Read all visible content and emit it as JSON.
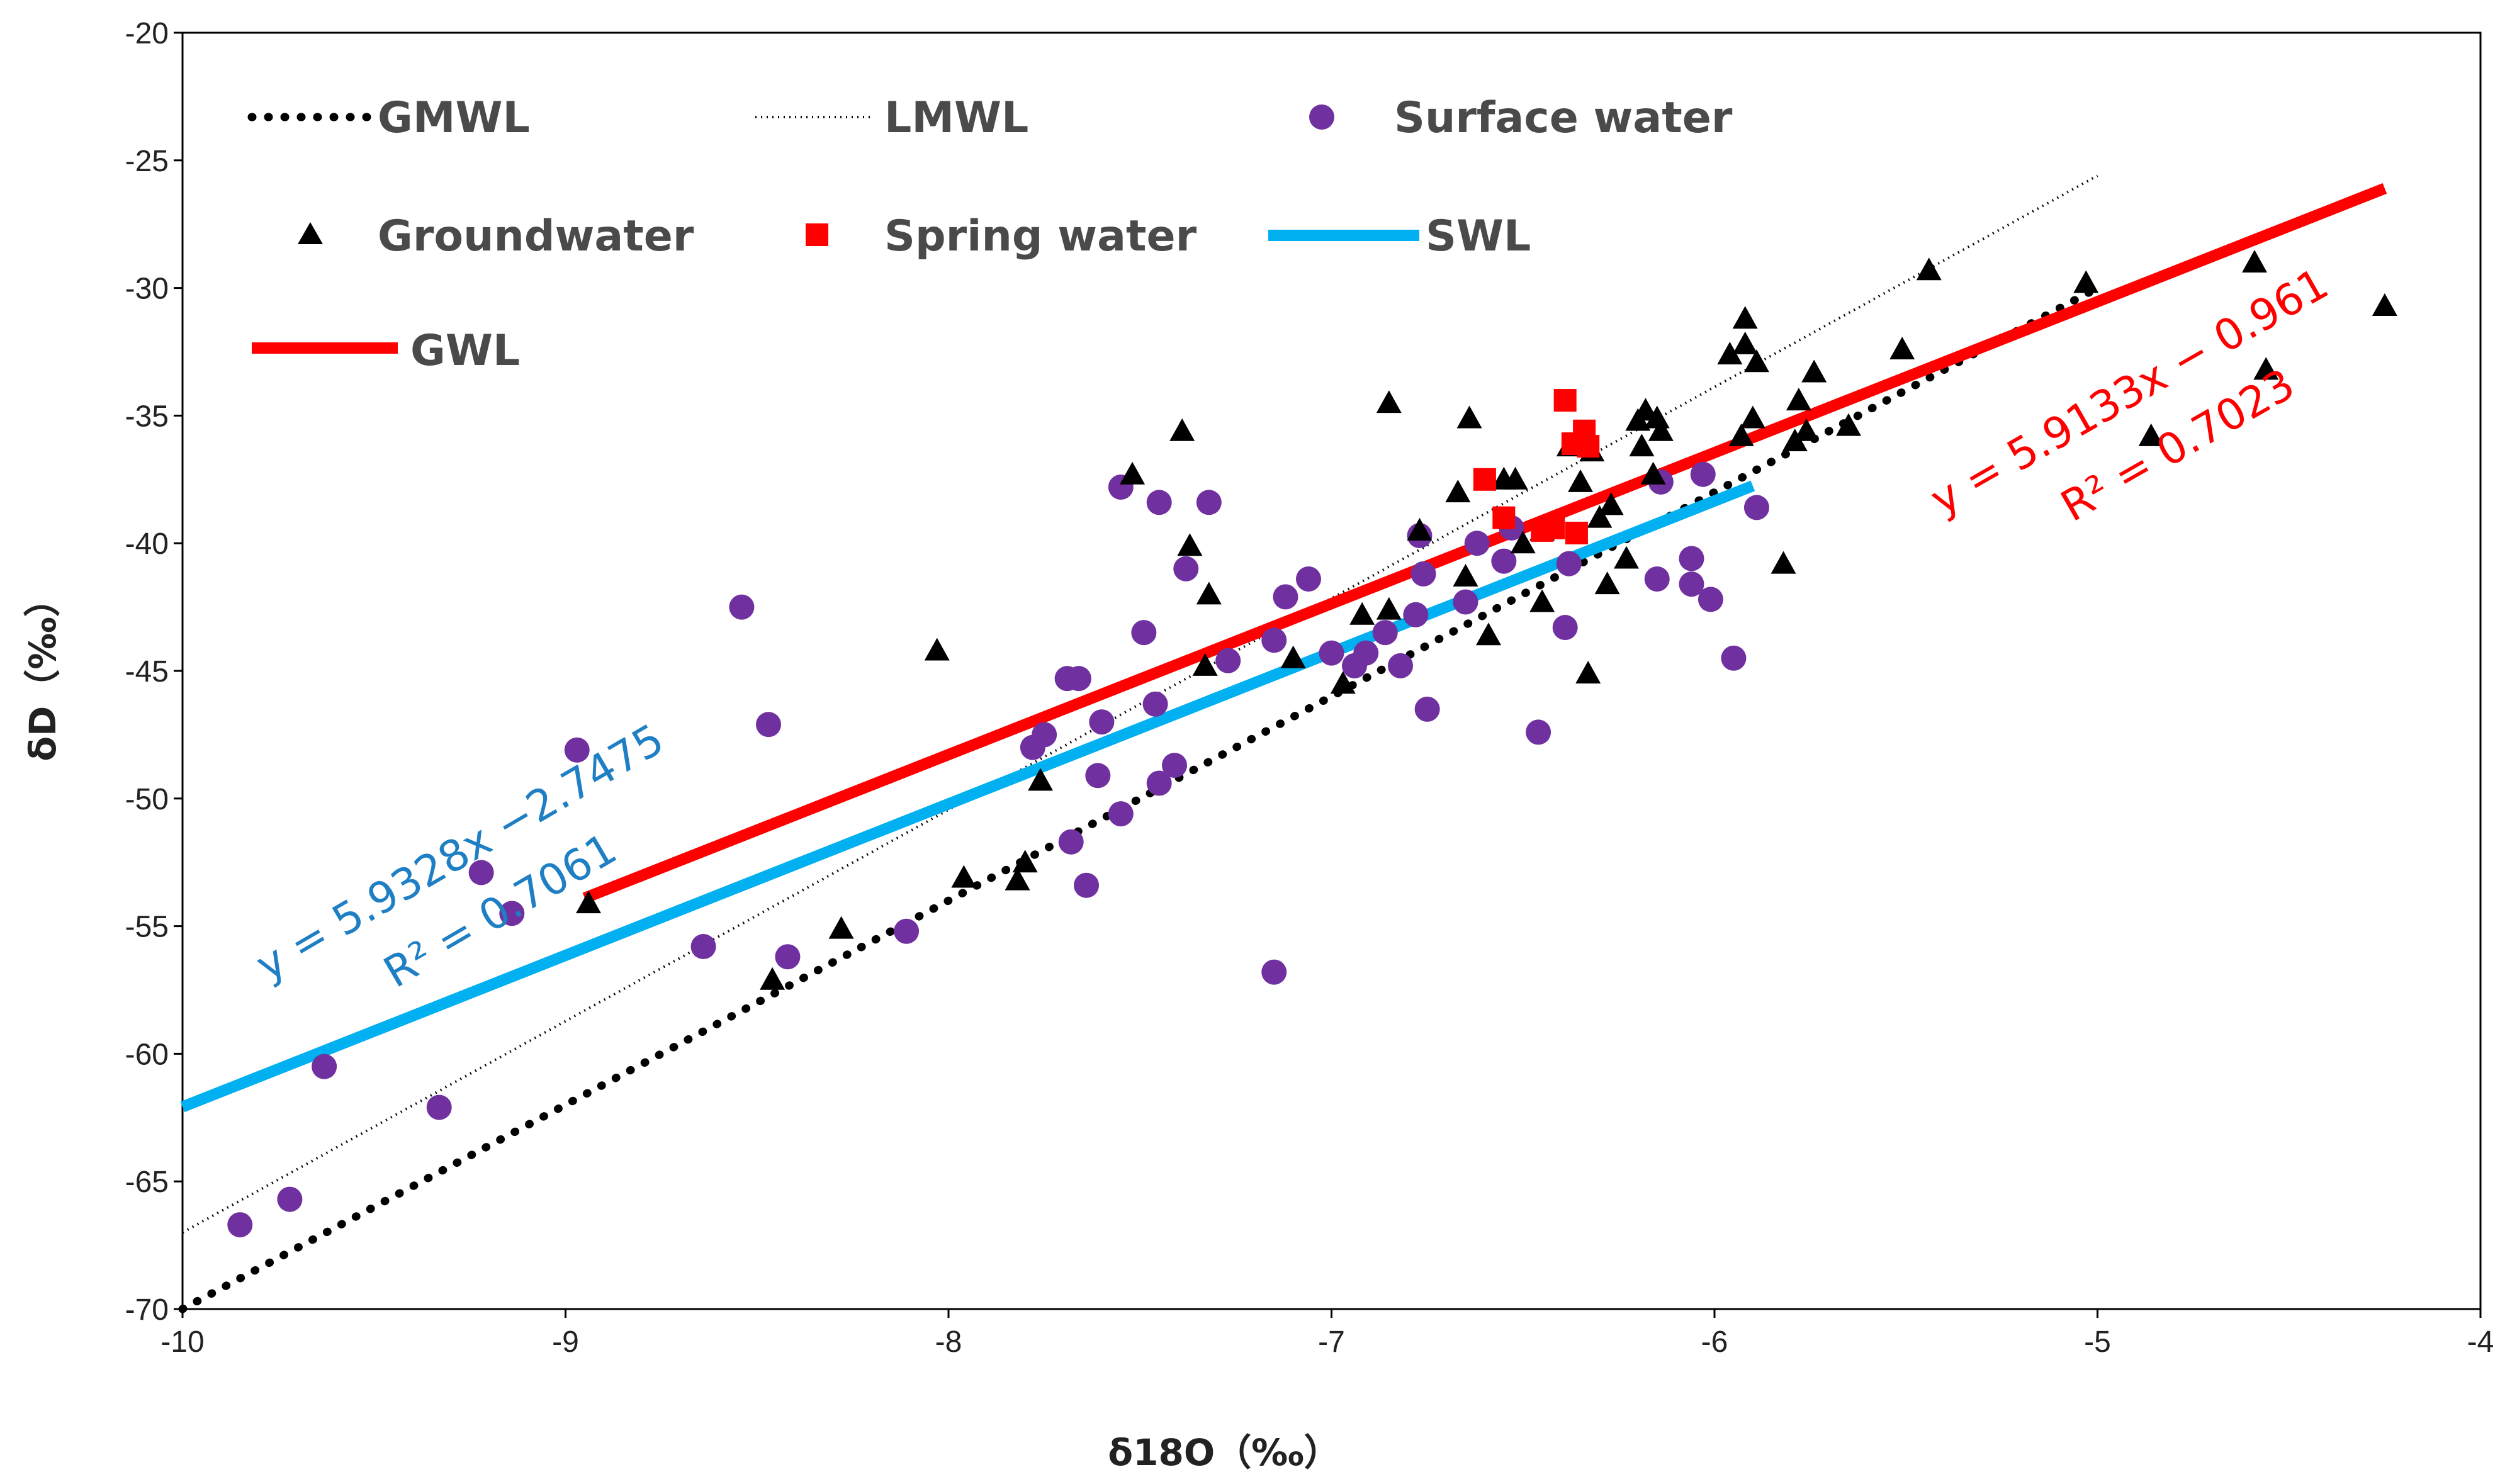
{
  "chart_data": {
    "type": "scatter",
    "title": "",
    "xlabel": "δ18O（‰）",
    "ylabel": "δD（‰）",
    "xlim": [
      -10,
      -4
    ],
    "ylim": [
      -70,
      -20
    ],
    "x_ticks": [
      "-10",
      "-9",
      "-8",
      "-7",
      "-6",
      "-5",
      "-4"
    ],
    "y_ticks": [
      "-20",
      "-25",
      "-30",
      "-35",
      "-40",
      "-45",
      "-50",
      "-55",
      "-60",
      "-65",
      "-70"
    ],
    "grid": false,
    "legend_position": "top",
    "legend": {
      "gmwl": "GMWL",
      "lmwl": "LMWL",
      "surface": "Surface water",
      "ground": "Groundwater",
      "spring": "Spring water",
      "swl": "SWL",
      "gwl": "GWL"
    },
    "lines": [
      {
        "name": "GMWL",
        "style": "dotted-bold",
        "color": "#000000",
        "x": [
          -10,
          -5
        ],
        "y": [
          -70,
          -30
        ]
      },
      {
        "name": "LMWL",
        "style": "dotted-thin",
        "color": "#000000",
        "x": [
          -10,
          -5
        ],
        "y": [
          -67,
          -25.6
        ]
      },
      {
        "name": "SWL",
        "style": "solid",
        "color": "#00b0f0",
        "x": [
          -10,
          -5.9
        ],
        "y": [
          -62.08,
          -37.75
        ]
      },
      {
        "name": "GWL",
        "style": "solid",
        "color": "#ff0000",
        "x": [
          -8.95,
          -4.25
        ],
        "y": [
          -53.9,
          -26.1
        ]
      }
    ],
    "annotations": {
      "swl_eq": "y = 5.9328x −2.7475",
      "swl_r2": "R² = 0.7061",
      "gwl_eq": "y = 5.9133x − 0.961",
      "gwl_r2": "R² = 0.7023"
    },
    "series": [
      {
        "name": "Surface water",
        "marker": "circle",
        "color": "#7030a0",
        "points": [
          [
            -9.85,
            -66.7
          ],
          [
            -9.72,
            -65.7
          ],
          [
            -9.63,
            -60.5
          ],
          [
            -9.33,
            -62.1
          ],
          [
            -9.22,
            -52.9
          ],
          [
            -9.14,
            -54.5
          ],
          [
            -8.97,
            -48.1
          ],
          [
            -8.64,
            -55.8
          ],
          [
            -8.54,
            -42.5
          ],
          [
            -8.47,
            -47.1
          ],
          [
            -8.42,
            -56.2
          ],
          [
            -8.11,
            -55.2
          ],
          [
            -7.78,
            -48.0
          ],
          [
            -7.75,
            -47.5
          ],
          [
            -7.69,
            -45.3
          ],
          [
            -7.68,
            -51.7
          ],
          [
            -7.66,
            -45.3
          ],
          [
            -7.64,
            -53.4
          ],
          [
            -7.61,
            -49.1
          ],
          [
            -7.6,
            -47.0
          ],
          [
            -7.55,
            -50.6
          ],
          [
            -7.55,
            -37.8
          ],
          [
            -7.49,
            -43.5
          ],
          [
            -7.46,
            -46.3
          ],
          [
            -7.45,
            -49.4
          ],
          [
            -7.45,
            -38.4
          ],
          [
            -7.41,
            -48.7
          ],
          [
            -7.38,
            -41.0
          ],
          [
            -7.32,
            -38.4
          ],
          [
            -7.27,
            -44.6
          ],
          [
            -7.15,
            -56.8
          ],
          [
            -7.15,
            -43.8
          ],
          [
            -7.12,
            -42.1
          ],
          [
            -7.06,
            -41.4
          ],
          [
            -7.0,
            -44.3
          ],
          [
            -6.94,
            -44.8
          ],
          [
            -6.91,
            -44.3
          ],
          [
            -6.86,
            -43.5
          ],
          [
            -6.82,
            -44.8
          ],
          [
            -6.78,
            -42.8
          ],
          [
            -6.77,
            -39.7
          ],
          [
            -6.76,
            -41.2
          ],
          [
            -6.75,
            -46.5
          ],
          [
            -6.65,
            -42.3
          ],
          [
            -6.62,
            -40.0
          ],
          [
            -6.55,
            -40.7
          ],
          [
            -6.53,
            -39.4
          ],
          [
            -6.46,
            -47.4
          ],
          [
            -6.39,
            -43.3
          ],
          [
            -6.38,
            -40.8
          ],
          [
            -6.15,
            -41.4
          ],
          [
            -6.14,
            -37.6
          ],
          [
            -6.06,
            -40.6
          ],
          [
            -6.06,
            -41.6
          ],
          [
            -6.03,
            -37.3
          ],
          [
            -6.01,
            -42.2
          ],
          [
            -5.95,
            -44.5
          ],
          [
            -5.89,
            -38.6
          ]
        ]
      },
      {
        "name": "Groundwater",
        "marker": "triangle",
        "color": "#000000",
        "points": [
          [
            -8.94,
            -54.1
          ],
          [
            -8.46,
            -57.1
          ],
          [
            -8.28,
            -55.1
          ],
          [
            -8.03,
            -44.2
          ],
          [
            -7.96,
            -53.1
          ],
          [
            -7.82,
            -53.2
          ],
          [
            -7.8,
            -52.5
          ],
          [
            -7.76,
            -49.3
          ],
          [
            -7.52,
            -37.3
          ],
          [
            -7.39,
            -35.6
          ],
          [
            -7.37,
            -40.1
          ],
          [
            -7.33,
            -44.8
          ],
          [
            -7.32,
            -42.0
          ],
          [
            -7.1,
            -44.5
          ],
          [
            -6.97,
            -45.5
          ],
          [
            -6.92,
            -42.8
          ],
          [
            -6.85,
            -34.5
          ],
          [
            -6.85,
            -42.6
          ],
          [
            -6.77,
            -39.5
          ],
          [
            -6.67,
            -38.0
          ],
          [
            -6.65,
            -41.3
          ],
          [
            -6.64,
            -35.1
          ],
          [
            -6.59,
            -43.6
          ],
          [
            -6.55,
            -37.5
          ],
          [
            -6.52,
            -37.5
          ],
          [
            -6.5,
            -40.0
          ],
          [
            -6.45,
            -42.3
          ],
          [
            -6.45,
            -39.5
          ],
          [
            -6.38,
            -36.2
          ],
          [
            -6.35,
            -37.6
          ],
          [
            -6.33,
            -45.1
          ],
          [
            -6.32,
            -36.4
          ],
          [
            -6.3,
            -39.0
          ],
          [
            -6.28,
            -41.6
          ],
          [
            -6.27,
            -38.5
          ],
          [
            -6.23,
            -40.6
          ],
          [
            -6.2,
            -35.2
          ],
          [
            -6.19,
            -36.2
          ],
          [
            -6.18,
            -34.8
          ],
          [
            -6.16,
            -37.3
          ],
          [
            -6.15,
            -35.1
          ],
          [
            -6.14,
            -35.6
          ],
          [
            -5.96,
            -32.6
          ],
          [
            -5.93,
            -35.8
          ],
          [
            -5.92,
            -32.2
          ],
          [
            -5.92,
            -31.2
          ],
          [
            -5.9,
            -35.1
          ],
          [
            -5.89,
            -32.9
          ],
          [
            -5.82,
            -40.8
          ],
          [
            -5.79,
            -36.0
          ],
          [
            -5.78,
            -34.4
          ],
          [
            -5.76,
            -35.6
          ],
          [
            -5.74,
            -33.3
          ],
          [
            -5.65,
            -35.4
          ],
          [
            -5.51,
            -32.4
          ],
          [
            -5.44,
            -29.3
          ],
          [
            -5.03,
            -29.8
          ],
          [
            -4.86,
            -35.8
          ],
          [
            -4.59,
            -29.0
          ],
          [
            -4.56,
            -33.2
          ],
          [
            -4.25,
            -30.7
          ]
        ]
      },
      {
        "name": "Spring water",
        "marker": "square",
        "color": "#ff0000",
        "points": [
          [
            -6.6,
            -37.5
          ],
          [
            -6.55,
            -39.0
          ],
          [
            -6.45,
            -39.5
          ],
          [
            -6.42,
            -39.4
          ],
          [
            -6.39,
            -34.4
          ],
          [
            -6.37,
            -36.1
          ],
          [
            -6.36,
            -39.6
          ],
          [
            -6.34,
            -35.6
          ],
          [
            -6.33,
            -36.2
          ]
        ]
      }
    ]
  }
}
